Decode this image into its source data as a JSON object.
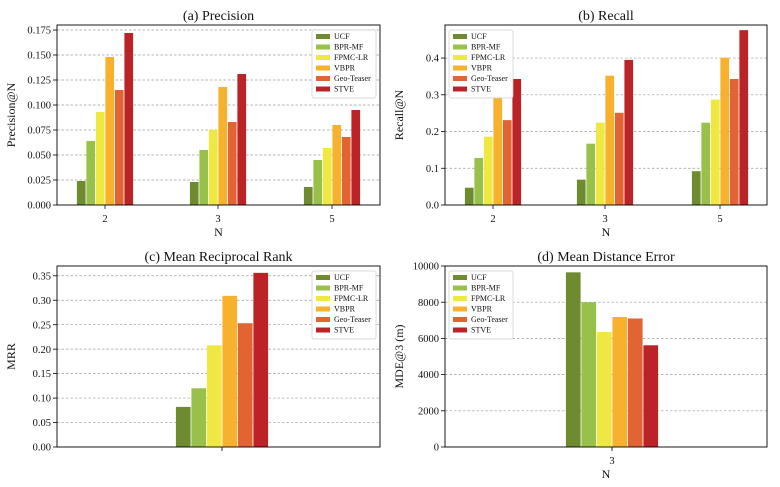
{
  "series_names": [
    "UCF",
    "BPR-MF",
    "FPMC-LR",
    "VBPR",
    "Geo-Teaser",
    "STVE"
  ],
  "colors": [
    "#6e8b2f",
    "#97c14a",
    "#eee840",
    "#f7b12c",
    "#e26432",
    "#bb2327"
  ],
  "chart_data": [
    {
      "type": "bar",
      "title": "(a) Precision",
      "xlabel": "N",
      "ylabel": "Precision@N",
      "categories": [
        "2",
        "3",
        "5"
      ],
      "ylim": [
        0,
        0.18
      ],
      "yticks": [
        0.0,
        0.025,
        0.05,
        0.075,
        0.1,
        0.125,
        0.15,
        0.175
      ],
      "ytick_labels": [
        "0.000",
        "0.025",
        "0.050",
        "0.075",
        "0.100",
        "0.125",
        "0.150",
        "0.175"
      ],
      "grid": true,
      "legend_position": "top-right",
      "series": [
        {
          "name": "UCF",
          "values": [
            0.024,
            0.023,
            0.018
          ]
        },
        {
          "name": "BPR-MF",
          "values": [
            0.064,
            0.055,
            0.045
          ]
        },
        {
          "name": "FPMC-LR",
          "values": [
            0.093,
            0.075,
            0.057
          ]
        },
        {
          "name": "VBPR",
          "values": [
            0.148,
            0.118,
            0.08
          ]
        },
        {
          "name": "Geo-Teaser",
          "values": [
            0.115,
            0.083,
            0.068
          ]
        },
        {
          "name": "STVE",
          "values": [
            0.172,
            0.131,
            0.095
          ]
        }
      ]
    },
    {
      "type": "bar",
      "title": "(b) Recall",
      "xlabel": "N",
      "ylabel": "Recall@N",
      "categories": [
        "2",
        "3",
        "5"
      ],
      "ylim": [
        0,
        0.49
      ],
      "yticks": [
        0.0,
        0.1,
        0.2,
        0.3,
        0.4
      ],
      "ytick_labels": [
        "0.0",
        "0.1",
        "0.2",
        "0.3",
        "0.4"
      ],
      "grid": true,
      "legend_position": "top-left",
      "series": [
        {
          "name": "UCF",
          "values": [
            0.047,
            0.069,
            0.092
          ]
        },
        {
          "name": "BPR-MF",
          "values": [
            0.128,
            0.167,
            0.224
          ]
        },
        {
          "name": "FPMC-LR",
          "values": [
            0.186,
            0.224,
            0.287
          ]
        },
        {
          "name": "VBPR",
          "values": [
            0.296,
            0.352,
            0.401
          ]
        },
        {
          "name": "Geo-Teaser",
          "values": [
            0.231,
            0.251,
            0.343
          ]
        },
        {
          "name": "STVE",
          "values": [
            0.343,
            0.395,
            0.476
          ]
        }
      ]
    },
    {
      "type": "bar",
      "title": "(c) Mean Reciprocal Rank",
      "xlabel": "",
      "ylabel": "MRR",
      "categories": [
        ""
      ],
      "ylim": [
        0,
        0.37
      ],
      "yticks": [
        0.0,
        0.05,
        0.1,
        0.15,
        0.2,
        0.25,
        0.3,
        0.35
      ],
      "ytick_labels": [
        "0.00",
        "0.05",
        "0.10",
        "0.15",
        "0.20",
        "0.25",
        "0.30",
        "0.35"
      ],
      "grid": true,
      "legend_position": "top-right",
      "series": [
        {
          "name": "UCF",
          "values": [
            0.082
          ]
        },
        {
          "name": "BPR-MF",
          "values": [
            0.12
          ]
        },
        {
          "name": "FPMC-LR",
          "values": [
            0.208
          ]
        },
        {
          "name": "VBPR",
          "values": [
            0.309
          ]
        },
        {
          "name": "Geo-Teaser",
          "values": [
            0.253
          ]
        },
        {
          "name": "STVE",
          "values": [
            0.356
          ]
        }
      ]
    },
    {
      "type": "bar",
      "title": "(d) Mean Distance Error",
      "xlabel": "N",
      "ylabel": "MDE@3 (m)",
      "categories": [
        "3"
      ],
      "ylim": [
        0,
        10000
      ],
      "yticks": [
        0,
        2000,
        4000,
        6000,
        8000,
        10000
      ],
      "ytick_labels": [
        "0",
        "2000",
        "4000",
        "6000",
        "8000",
        "10000"
      ],
      "grid": true,
      "legend_position": "top-left",
      "series": [
        {
          "name": "UCF",
          "values": [
            9650
          ]
        },
        {
          "name": "BPR-MF",
          "values": [
            8000
          ]
        },
        {
          "name": "FPMC-LR",
          "values": [
            6350
          ]
        },
        {
          "name": "VBPR",
          "values": [
            7180
          ]
        },
        {
          "name": "Geo-Teaser",
          "values": [
            7100
          ]
        },
        {
          "name": "STVE",
          "values": [
            5620
          ]
        }
      ]
    }
  ]
}
